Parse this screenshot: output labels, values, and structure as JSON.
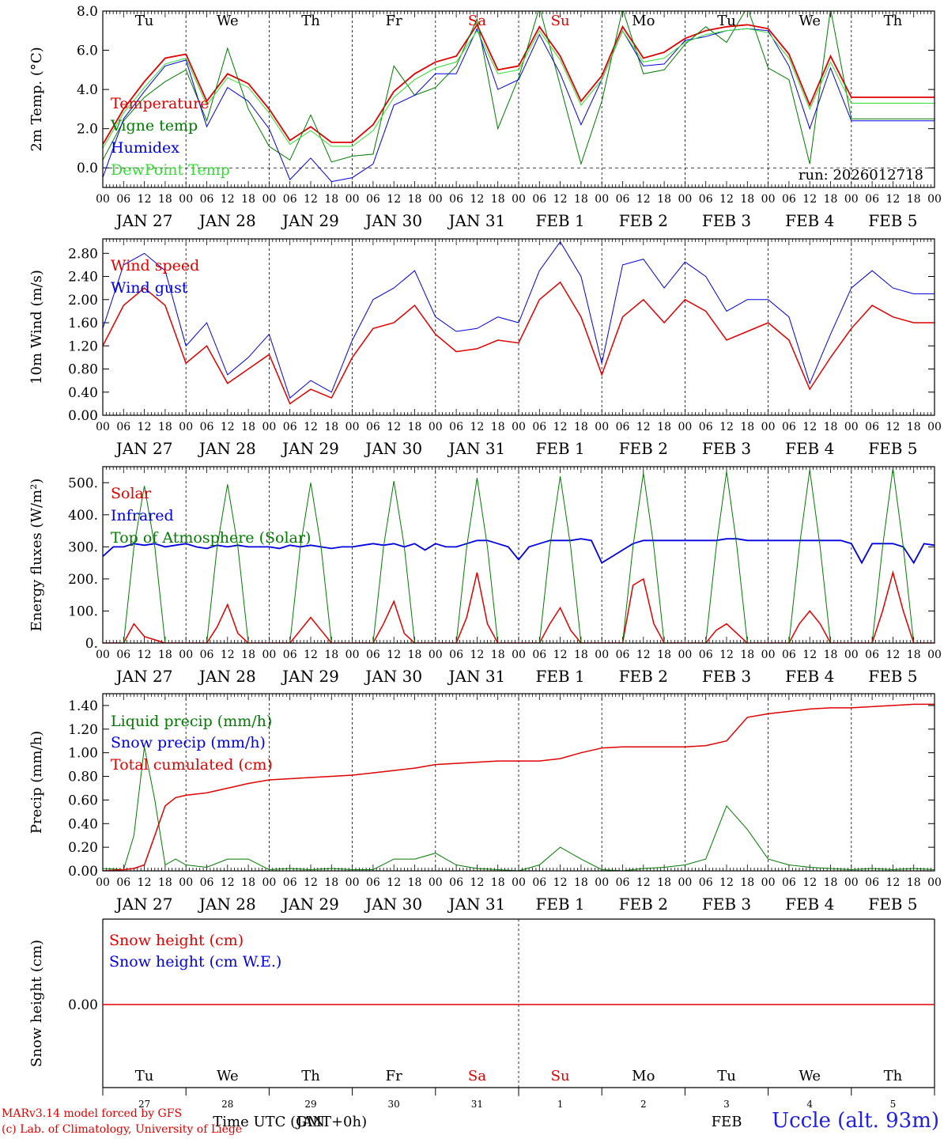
{
  "colors": {
    "red": "#e00000",
    "green": "#007a00",
    "lightgreen": "#33dd33",
    "blue": "#0000e0",
    "weekend": "#e00000",
    "axis": "#000000"
  },
  "days": [
    "Tu",
    "We",
    "Th",
    "Fr",
    "Sa",
    "Su",
    "Mo",
    "Tu",
    "We",
    "Th"
  ],
  "weekend_days": [
    4,
    5
  ],
  "date_labels": [
    "JAN 27",
    "JAN 28",
    "JAN 29",
    "JAN 30",
    "JAN 31",
    "FEB  1",
    "FEB  2",
    "FEB  3",
    "FEB  4",
    "FEB  5"
  ],
  "hour_labels": [
    "00",
    "06",
    "12",
    "18"
  ],
  "last_hour_label": "00",
  "bottom": {
    "day_numbers": [
      "27",
      "28",
      "29",
      "30",
      "31",
      "1",
      "2",
      "3",
      "4",
      "5"
    ],
    "month_left": "JAN",
    "month_right": "FEB",
    "xlabel": "Time UTC (GMT+0h)"
  },
  "run_label": "run: 2026012718",
  "footer": {
    "credit_line1": "MARv3.14 model forced by GFS",
    "credit_line2": "(c) Lab. of Climatology, University of Liege",
    "station": "Uccle (alt. 93m)"
  },
  "chart_data": [
    {
      "type": "line",
      "id": "temperature",
      "ylabel": "2m Temp. (°C)",
      "ylim": [
        -1.0,
        8.0
      ],
      "yticks": [
        0.0,
        2.0,
        4.0,
        6.0,
        8.0
      ],
      "ytick_labels": [
        "0.0",
        "2.0",
        "4.0",
        "6.0",
        "8.0"
      ],
      "dashed_zero": true,
      "x_hours": [
        0,
        6,
        12,
        18,
        24,
        30,
        36,
        42,
        48,
        54,
        60,
        66,
        72,
        78,
        84,
        90,
        96,
        102,
        108,
        114,
        120,
        126,
        132,
        138,
        144,
        150,
        156,
        162,
        168,
        174,
        180,
        186,
        192,
        198,
        204,
        210,
        216,
        222,
        228,
        234,
        240
      ],
      "series": [
        {
          "name": "Temperature",
          "color_key": "red",
          "width": 1.8,
          "values": [
            1.2,
            3.0,
            4.4,
            5.6,
            5.8,
            3.4,
            4.8,
            4.3,
            3.0,
            1.4,
            2.1,
            1.3,
            1.3,
            2.2,
            3.9,
            4.8,
            5.4,
            5.7,
            7.3,
            5.0,
            5.2,
            7.2,
            5.7,
            3.4,
            4.7,
            7.2,
            5.6,
            5.9,
            6.6,
            7.0,
            7.2,
            7.3,
            7.1,
            5.8,
            3.2,
            5.7,
            3.6,
            3.6,
            3.6,
            3.6,
            3.6
          ]
        },
        {
          "name": "Vigne temp",
          "color_key": "green",
          "width": 1.0,
          "values": [
            0.4,
            2.4,
            3.6,
            4.4,
            5.0,
            2.4,
            6.1,
            3.0,
            1.1,
            0.4,
            2.7,
            0.3,
            0.6,
            0.7,
            5.2,
            3.7,
            4.1,
            5.2,
            7.6,
            2.0,
            4.6,
            8.2,
            4.2,
            0.2,
            3.4,
            8.1,
            4.8,
            5.0,
            6.3,
            7.2,
            6.4,
            8.2,
            5.1,
            4.5,
            0.2,
            8.1,
            2.5,
            2.5,
            2.5,
            2.5,
            2.5
          ]
        },
        {
          "name": "Humidex",
          "color_key": "blue",
          "width": 1.0,
          "values": [
            -0.5,
            2.5,
            3.9,
            5.2,
            5.5,
            2.1,
            4.1,
            3.4,
            2.0,
            -0.6,
            0.5,
            -0.7,
            -0.5,
            0.2,
            3.2,
            3.7,
            4.8,
            4.8,
            7.1,
            4.0,
            4.5,
            6.8,
            4.8,
            2.2,
            4.5,
            7.0,
            5.2,
            5.3,
            6.5,
            6.7,
            7.0,
            7.1,
            7.0,
            5.2,
            2.0,
            5.1,
            2.4,
            2.4,
            2.4,
            2.4,
            2.4
          ]
        },
        {
          "name": "DewPoint Temp",
          "color_key": "lightgreen",
          "width": 1.0,
          "values": [
            1.0,
            2.8,
            4.1,
            5.3,
            5.6,
            3.2,
            4.6,
            4.1,
            2.8,
            1.2,
            1.9,
            1.1,
            1.1,
            1.9,
            3.6,
            4.5,
            5.1,
            5.4,
            7.0,
            4.8,
            5.0,
            7.0,
            5.5,
            3.2,
            4.5,
            7.0,
            5.4,
            5.6,
            6.4,
            6.8,
            7.0,
            7.1,
            6.9,
            5.6,
            3.0,
            5.4,
            3.3,
            3.3,
            3.3,
            3.3,
            3.3
          ]
        }
      ]
    },
    {
      "type": "line",
      "id": "wind",
      "ylabel": "10m Wind (m/s)",
      "ylim": [
        0.0,
        3.05
      ],
      "yticks": [
        0.0,
        0.4,
        0.8,
        1.2,
        1.6,
        2.0,
        2.4,
        2.8
      ],
      "ytick_labels": [
        "0.00",
        "0.40",
        "0.80",
        "1.20",
        "1.60",
        "2.00",
        "2.40",
        "2.80"
      ],
      "x_hours": [
        0,
        6,
        12,
        18,
        24,
        30,
        36,
        42,
        48,
        54,
        60,
        66,
        72,
        78,
        84,
        90,
        96,
        102,
        108,
        114,
        120,
        126,
        132,
        138,
        144,
        150,
        156,
        162,
        168,
        174,
        180,
        186,
        192,
        198,
        204,
        210,
        216,
        222,
        228,
        234,
        240
      ],
      "series": [
        {
          "name": "Wind speed",
          "color_key": "red",
          "width": 1.5,
          "values": [
            1.2,
            1.9,
            2.2,
            1.9,
            0.9,
            1.2,
            0.55,
            0.8,
            1.05,
            0.2,
            0.45,
            0.3,
            1.0,
            1.5,
            1.6,
            1.9,
            1.4,
            1.1,
            1.15,
            1.3,
            1.25,
            2.0,
            2.3,
            1.7,
            0.7,
            1.7,
            2.0,
            1.6,
            2.0,
            1.8,
            1.3,
            1.45,
            1.6,
            1.3,
            0.45,
            1.0,
            1.5,
            1.9,
            1.7,
            1.6,
            1.6
          ]
        },
        {
          "name": "Wind gust",
          "color_key": "blue",
          "width": 1.0,
          "values": [
            1.5,
            2.6,
            2.8,
            2.5,
            1.2,
            1.6,
            0.7,
            1.0,
            1.4,
            0.3,
            0.6,
            0.4,
            1.3,
            2.0,
            2.2,
            2.5,
            1.7,
            1.45,
            1.5,
            1.7,
            1.6,
            2.5,
            3.0,
            2.4,
            0.9,
            2.6,
            2.7,
            2.2,
            2.65,
            2.4,
            1.8,
            2.0,
            2.0,
            1.7,
            0.55,
            1.4,
            2.2,
            2.5,
            2.2,
            2.1,
            2.1
          ]
        }
      ]
    },
    {
      "type": "line",
      "id": "energy",
      "ylabel": "Energy fluxes (W/m²)",
      "ylim": [
        0,
        550
      ],
      "yticks": [
        0,
        100,
        200,
        300,
        400,
        500
      ],
      "ytick_labels": [
        "0.",
        "100.",
        "200.",
        "300.",
        "400.",
        "500."
      ],
      "x_hours": [
        0,
        3,
        6,
        9,
        12,
        15,
        18,
        21,
        24,
        27,
        30,
        33,
        36,
        39,
        42,
        45,
        48,
        51,
        54,
        57,
        60,
        63,
        66,
        69,
        72,
        75,
        78,
        81,
        84,
        87,
        90,
        93,
        96,
        99,
        102,
        105,
        108,
        111,
        114,
        117,
        120,
        123,
        126,
        129,
        132,
        135,
        138,
        141,
        144,
        147,
        150,
        153,
        156,
        159,
        162,
        165,
        168,
        171,
        174,
        177,
        180,
        183,
        186,
        189,
        192,
        195,
        198,
        201,
        204,
        207,
        210,
        213,
        216,
        219,
        222,
        225,
        228,
        231,
        234,
        237,
        240
      ],
      "series": [
        {
          "name": "Solar",
          "color_key": "red",
          "width": 1.5,
          "values": [
            0,
            0,
            0,
            60,
            20,
            10,
            0,
            0,
            0,
            0,
            0,
            50,
            120,
            30,
            0,
            0,
            0,
            0,
            0,
            40,
            80,
            40,
            0,
            0,
            0,
            0,
            0,
            60,
            130,
            30,
            0,
            0,
            0,
            0,
            0,
            80,
            220,
            60,
            0,
            0,
            0,
            0,
            0,
            60,
            110,
            40,
            0,
            0,
            0,
            0,
            0,
            180,
            200,
            60,
            0,
            0,
            0,
            0,
            0,
            40,
            60,
            30,
            0,
            0,
            0,
            0,
            0,
            60,
            100,
            60,
            0,
            0,
            0,
            0,
            0,
            100,
            220,
            100,
            0,
            0,
            0
          ]
        },
        {
          "name": "Infrared",
          "color_key": "blue",
          "width": 1.8,
          "values": [
            270,
            300,
            300,
            310,
            305,
            310,
            300,
            305,
            310,
            300,
            295,
            305,
            300,
            305,
            300,
            300,
            300,
            295,
            305,
            300,
            305,
            300,
            295,
            300,
            300,
            305,
            310,
            305,
            310,
            300,
            310,
            290,
            310,
            300,
            300,
            310,
            320,
            320,
            310,
            300,
            260,
            300,
            310,
            320,
            320,
            320,
            325,
            320,
            250,
            270,
            290,
            310,
            320,
            320,
            320,
            320,
            320,
            320,
            320,
            320,
            325,
            325,
            320,
            320,
            320,
            320,
            320,
            320,
            320,
            320,
            320,
            320,
            310,
            250,
            310,
            310,
            310,
            300,
            250,
            310,
            305
          ]
        },
        {
          "name": "Top of Atmosphere (Solar)",
          "color_key": "green",
          "width": 1.0,
          "values": [
            0,
            0,
            0,
            300,
            490,
            300,
            0,
            0,
            0,
            0,
            0,
            300,
            495,
            300,
            0,
            0,
            0,
            0,
            0,
            300,
            500,
            300,
            0,
            0,
            0,
            0,
            0,
            300,
            505,
            300,
            0,
            0,
            0,
            0,
            0,
            300,
            515,
            300,
            0,
            0,
            0,
            0,
            0,
            300,
            520,
            300,
            0,
            0,
            0,
            0,
            0,
            300,
            530,
            300,
            0,
            0,
            0,
            0,
            0,
            300,
            535,
            300,
            0,
            0,
            0,
            0,
            0,
            300,
            540,
            300,
            0,
            0,
            0,
            0,
            0,
            300,
            545,
            300,
            0,
            0,
            0
          ]
        }
      ]
    },
    {
      "type": "line",
      "id": "precip",
      "ylabel": "Precip (mm/h)",
      "ylim": [
        0.0,
        1.5
      ],
      "yticks": [
        0.0,
        0.2,
        0.4,
        0.6,
        0.8,
        1.0,
        1.2,
        1.4
      ],
      "ytick_labels": [
        "0.00",
        "0.20",
        "0.40",
        "0.60",
        "0.80",
        "1.00",
        "1.20",
        "1.40"
      ],
      "x_hours": [
        0,
        6,
        9,
        12,
        15,
        18,
        21,
        24,
        30,
        36,
        42,
        48,
        54,
        60,
        66,
        72,
        78,
        84,
        90,
        96,
        102,
        108,
        114,
        120,
        126,
        132,
        138,
        144,
        150,
        156,
        162,
        168,
        174,
        180,
        186,
        192,
        198,
        204,
        210,
        216,
        222,
        228,
        234,
        240
      ],
      "series": [
        {
          "name": "Liquid precip (mm/h)",
          "color_key": "green",
          "width": 1.0,
          "values": [
            0.02,
            0.01,
            0.3,
            1.05,
            0.6,
            0.05,
            0.1,
            0.05,
            0.03,
            0.1,
            0.1,
            0.01,
            0.02,
            0.01,
            0.02,
            0.01,
            0.01,
            0.1,
            0.1,
            0.15,
            0.05,
            0.02,
            0.01,
            0.0,
            0.05,
            0.2,
            0.1,
            0.01,
            0.0,
            0.02,
            0.03,
            0.05,
            0.1,
            0.55,
            0.35,
            0.1,
            0.05,
            0.03,
            0.02,
            0.01,
            0.02,
            0.01,
            0.02,
            0.01
          ]
        },
        {
          "name": "Snow precip (mm/h)",
          "color_key": "blue",
          "width": 1.0,
          "values": [
            0,
            0,
            0,
            0,
            0,
            0,
            0,
            0,
            0,
            0,
            0,
            0,
            0,
            0,
            0,
            0,
            0,
            0,
            0,
            0,
            0,
            0,
            0,
            0,
            0,
            0,
            0,
            0,
            0,
            0,
            0,
            0,
            0,
            0,
            0,
            0,
            0,
            0,
            0,
            0,
            0,
            0,
            0,
            0
          ]
        },
        {
          "name": "Total cumulated (cm)",
          "color_key": "red",
          "width": 1.5,
          "values": [
            0.0,
            0.01,
            0.02,
            0.05,
            0.3,
            0.55,
            0.62,
            0.64,
            0.66,
            0.7,
            0.74,
            0.77,
            0.78,
            0.79,
            0.8,
            0.81,
            0.83,
            0.85,
            0.87,
            0.9,
            0.91,
            0.92,
            0.93,
            0.93,
            0.93,
            0.95,
            1.0,
            1.04,
            1.05,
            1.05,
            1.05,
            1.05,
            1.06,
            1.1,
            1.3,
            1.33,
            1.35,
            1.37,
            1.38,
            1.38,
            1.39,
            1.4,
            1.41,
            1.41
          ]
        }
      ]
    },
    {
      "type": "line",
      "id": "snow",
      "ylabel": "Snow height (cm)",
      "ytick_labels": [
        "0.00"
      ],
      "x_hours": [
        0,
        240
      ],
      "series": [
        {
          "name": "Snow height (cm)",
          "color_key": "red",
          "width": 1.5,
          "values": [
            0.0,
            0.0
          ]
        },
        {
          "name": "Snow height (cm W.E.)",
          "color_key": "blue",
          "width": 1.0,
          "values": [
            0.0,
            0.0
          ]
        }
      ]
    }
  ]
}
